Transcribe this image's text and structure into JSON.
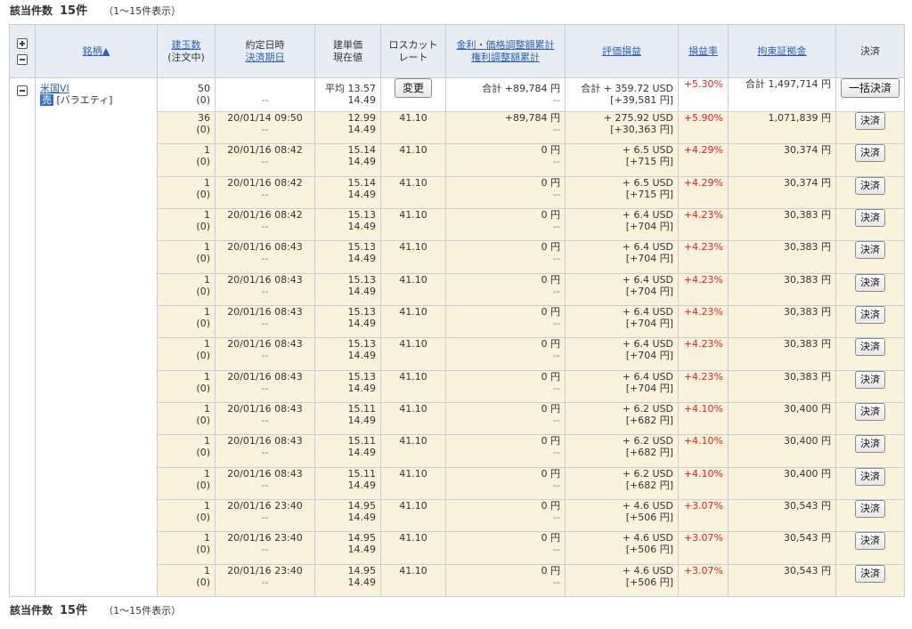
{
  "summary": {
    "label": "該当件数",
    "count": "15件",
    "range": "（1〜15件表示）"
  },
  "header": {
    "symbol": "銘柄▲",
    "qty_line1": "建玉数",
    "qty_line2": "(注文中)",
    "date_line1": "約定日時",
    "date_line2": "決済期日",
    "price_line1": "建単価",
    "price_line2": "現在値",
    "losscut_line1": "ロスカット",
    "losscut_line2": "レート",
    "adj_line1": "金利・価格調整額累計",
    "adj_line2": "権利調整額累計",
    "pl": "評価損益",
    "ratio": "損益率",
    "margin": "拘束証拠金",
    "settle": "決済"
  },
  "group": {
    "symbol": "米国VI",
    "side": "売",
    "category": "[バラエティ]",
    "qty": "50",
    "pending": "(0)",
    "date": "--",
    "avg_price": "平均 13.57",
    "current": "14.49",
    "change_button": "変更",
    "adj": "合計 +89,784 円",
    "rights": "--",
    "pl_usd": "合計 + 359.72 USD",
    "pl_jpy": "[+39,581 円]",
    "ratio": "+5.30%",
    "margin": "合計 1,497,714 円",
    "settle_all_button": "一括決済"
  },
  "settle_button": "決済",
  "rows": [
    {
      "qty": "36",
      "pending": "(0)",
      "date": "20/01/14 09:50",
      "due": "--",
      "price": "12.99",
      "current": "14.49",
      "losscut": "41.10",
      "adj": "+89,784 円",
      "rights": "--",
      "pl_usd": "+ 275.92 USD",
      "pl_jpy": "[+30,363 円]",
      "ratio": "+5.90%",
      "margin": "1,071,839 円"
    },
    {
      "qty": "1",
      "pending": "(0)",
      "date": "20/01/16 08:42",
      "due": "--",
      "price": "15.14",
      "current": "14.49",
      "losscut": "41.10",
      "adj": "0 円",
      "rights": "--",
      "pl_usd": "+ 6.5 USD",
      "pl_jpy": "[+715 円]",
      "ratio": "+4.29%",
      "margin": "30,374 円"
    },
    {
      "qty": "1",
      "pending": "(0)",
      "date": "20/01/16 08:42",
      "due": "--",
      "price": "15.14",
      "current": "14.49",
      "losscut": "41.10",
      "adj": "0 円",
      "rights": "--",
      "pl_usd": "+ 6.5 USD",
      "pl_jpy": "[+715 円]",
      "ratio": "+4.29%",
      "margin": "30,374 円"
    },
    {
      "qty": "1",
      "pending": "(0)",
      "date": "20/01/16 08:42",
      "due": "--",
      "price": "15.13",
      "current": "14.49",
      "losscut": "41.10",
      "adj": "0 円",
      "rights": "--",
      "pl_usd": "+ 6.4 USD",
      "pl_jpy": "[+704 円]",
      "ratio": "+4.23%",
      "margin": "30,383 円"
    },
    {
      "qty": "1",
      "pending": "(0)",
      "date": "20/01/16 08:43",
      "due": "--",
      "price": "15.13",
      "current": "14.49",
      "losscut": "41.10",
      "adj": "0 円",
      "rights": "--",
      "pl_usd": "+ 6.4 USD",
      "pl_jpy": "[+704 円]",
      "ratio": "+4.23%",
      "margin": "30,383 円"
    },
    {
      "qty": "1",
      "pending": "(0)",
      "date": "20/01/16 08:43",
      "due": "--",
      "price": "15.13",
      "current": "14.49",
      "losscut": "41.10",
      "adj": "0 円",
      "rights": "--",
      "pl_usd": "+ 6.4 USD",
      "pl_jpy": "[+704 円]",
      "ratio": "+4.23%",
      "margin": "30,383 円"
    },
    {
      "qty": "1",
      "pending": "(0)",
      "date": "20/01/16 08:43",
      "due": "--",
      "price": "15.13",
      "current": "14.49",
      "losscut": "41.10",
      "adj": "0 円",
      "rights": "--",
      "pl_usd": "+ 6.4 USD",
      "pl_jpy": "[+704 円]",
      "ratio": "+4.23%",
      "margin": "30,383 円"
    },
    {
      "qty": "1",
      "pending": "(0)",
      "date": "20/01/16 08:43",
      "due": "--",
      "price": "15.13",
      "current": "14.49",
      "losscut": "41.10",
      "adj": "0 円",
      "rights": "--",
      "pl_usd": "+ 6.4 USD",
      "pl_jpy": "[+704 円]",
      "ratio": "+4.23%",
      "margin": "30,383 円"
    },
    {
      "qty": "1",
      "pending": "(0)",
      "date": "20/01/16 08:43",
      "due": "--",
      "price": "15.13",
      "current": "14.49",
      "losscut": "41.10",
      "adj": "0 円",
      "rights": "--",
      "pl_usd": "+ 6.4 USD",
      "pl_jpy": "[+704 円]",
      "ratio": "+4.23%",
      "margin": "30,383 円"
    },
    {
      "qty": "1",
      "pending": "(0)",
      "date": "20/01/16 08:43",
      "due": "--",
      "price": "15.11",
      "current": "14.49",
      "losscut": "41.10",
      "adj": "0 円",
      "rights": "--",
      "pl_usd": "+ 6.2 USD",
      "pl_jpy": "[+682 円]",
      "ratio": "+4.10%",
      "margin": "30,400 円"
    },
    {
      "qty": "1",
      "pending": "(0)",
      "date": "20/01/16 08:43",
      "due": "--",
      "price": "15.11",
      "current": "14.49",
      "losscut": "41.10",
      "adj": "0 円",
      "rights": "--",
      "pl_usd": "+ 6.2 USD",
      "pl_jpy": "[+682 円]",
      "ratio": "+4.10%",
      "margin": "30,400 円"
    },
    {
      "qty": "1",
      "pending": "(0)",
      "date": "20/01/16 08:43",
      "due": "--",
      "price": "15.11",
      "current": "14.49",
      "losscut": "41.10",
      "adj": "0 円",
      "rights": "--",
      "pl_usd": "+ 6.2 USD",
      "pl_jpy": "[+682 円]",
      "ratio": "+4.10%",
      "margin": "30,400 円"
    },
    {
      "qty": "1",
      "pending": "(0)",
      "date": "20/01/16 23:40",
      "due": "--",
      "price": "14.95",
      "current": "14.49",
      "losscut": "41.10",
      "adj": "0 円",
      "rights": "--",
      "pl_usd": "+ 4.6 USD",
      "pl_jpy": "[+506 円]",
      "ratio": "+3.07%",
      "margin": "30,543 円"
    },
    {
      "qty": "1",
      "pending": "(0)",
      "date": "20/01/16 23:40",
      "due": "--",
      "price": "14.95",
      "current": "14.49",
      "losscut": "41.10",
      "adj": "0 円",
      "rights": "--",
      "pl_usd": "+ 4.6 USD",
      "pl_jpy": "[+506 円]",
      "ratio": "+3.07%",
      "margin": "30,543 円"
    },
    {
      "qty": "1",
      "pending": "(0)",
      "date": "20/01/16 23:40",
      "due": "--",
      "price": "14.95",
      "current": "14.49",
      "losscut": "41.10",
      "adj": "0 円",
      "rights": "--",
      "pl_usd": "+ 4.6 USD",
      "pl_jpy": "[+506 円]",
      "ratio": "+3.07%",
      "margin": "30,543 円"
    }
  ]
}
